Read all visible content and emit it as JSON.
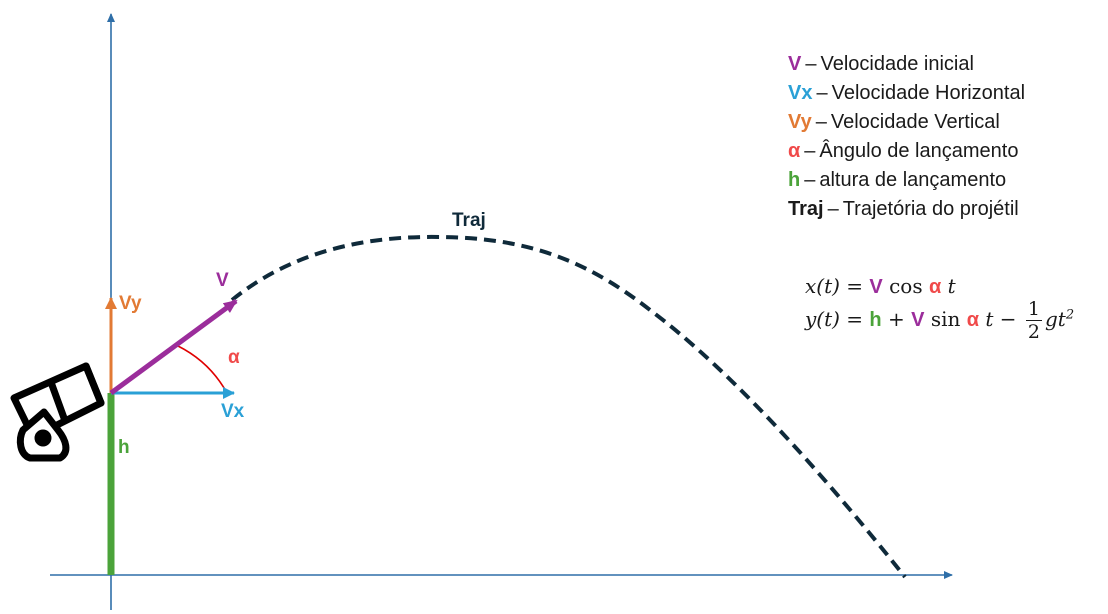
{
  "colors": {
    "axis": "#2f6fa8",
    "V": "#9b2d9b",
    "Vx": "#2aa0d6",
    "Vy": "#e27a34",
    "alpha": "#f04a4a",
    "h": "#4ba33a",
    "traj": "#0f2a3a",
    "text": "#1a1a1a"
  },
  "labels": {
    "V": "V",
    "Vx": "Vx",
    "Vy": "Vy",
    "alpha": "α",
    "h": "h",
    "traj": "Traj"
  },
  "legend": [
    {
      "sym": "V",
      "sep": "–",
      "text": "Velocidade inicial",
      "color_key": "V"
    },
    {
      "sym": "Vx",
      "sep": "–",
      "text": "Velocidade Horizontal",
      "color_key": "Vx"
    },
    {
      "sym": "Vy",
      "sep": "–",
      "text": "Velocidade Vertical",
      "color_key": "Vy"
    },
    {
      "sym": "α",
      "sep": "–",
      "text": "Ângulo de lançamento",
      "color_key": "alpha"
    },
    {
      "sym": "h",
      "sep": "–",
      "text": "altura de lançamento",
      "color_key": "h"
    },
    {
      "sym": "Traj",
      "sep": "–",
      "text": "Trajetória do projétil",
      "color_key": "text"
    }
  ],
  "equations": {
    "x_lhs": "x(t) = ",
    "x_V": "V",
    "x_cos": " cos ",
    "x_alpha": "α",
    "x_t": " t",
    "y_lhs": "y(t) = ",
    "y_h": "h",
    "y_plus": " + ",
    "y_V": "V",
    "y_sin": " sin ",
    "y_alpha": "α",
    "y_t": " t  − ",
    "frac_num": "1",
    "frac_den": "2",
    "y_gt": "gt",
    "y_exp": "2"
  },
  "icons": {
    "cannon": "cannon-icon"
  }
}
